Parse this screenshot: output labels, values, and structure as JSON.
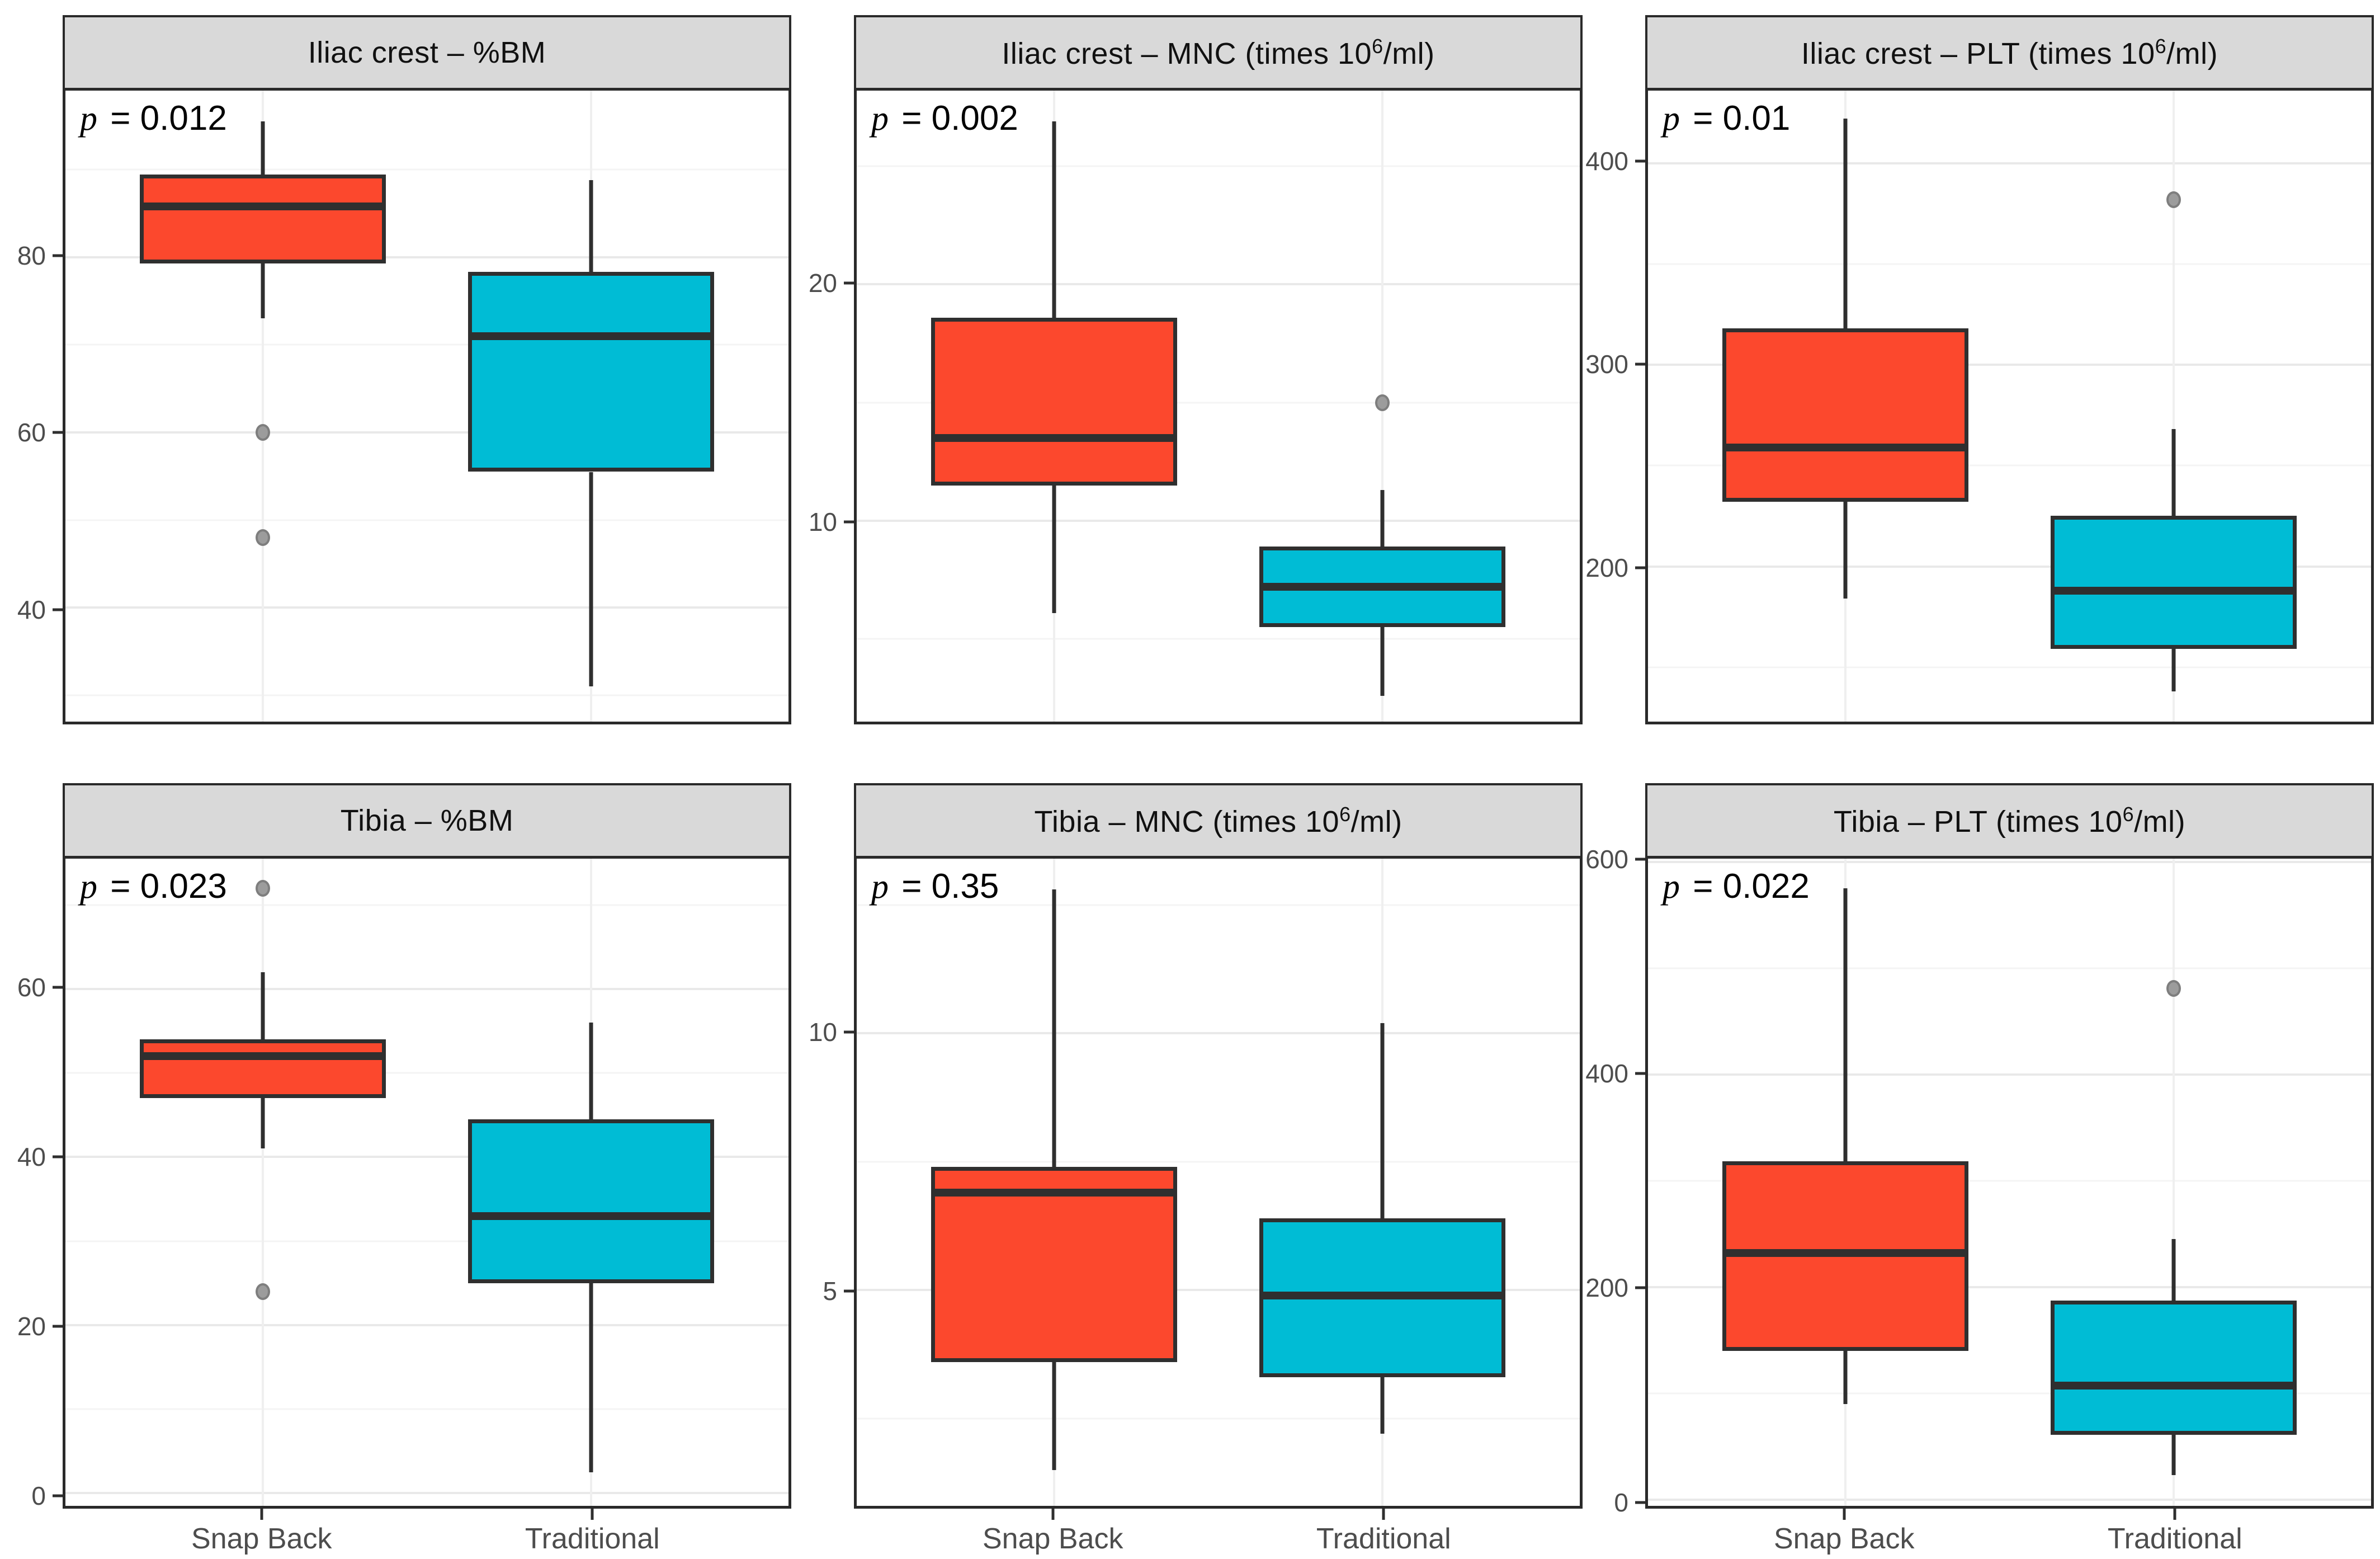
{
  "page": {
    "background": "#FFFFFF"
  },
  "chart_data": {
    "type": "boxplot",
    "layout": {
      "rows": 2,
      "cols": 3,
      "grid": true,
      "legend": "none",
      "strip_position": "top"
    },
    "x_categories": [
      "Snap Back",
      "Traditional"
    ],
    "colors": {
      "snap_back_fill": "#FC482D",
      "traditional_fill": "#00BCD5",
      "box_border": "#2F2F2F",
      "outlier_fill": "#9C9C9C",
      "strip_background": "#D9D9D9",
      "panel_border": "#2A2A2A",
      "grid_major": "#E9E9E9",
      "grid_minor": "#F4F4F4",
      "axis_text": "#4D4D4D"
    },
    "panels": [
      {
        "id": "iliac-crest-bm",
        "title": "Iliac crest – %BM",
        "p_label": "p = 0.012",
        "ylim": [
          27,
          99
        ],
        "ticks": [
          40,
          60,
          80
        ],
        "minor_ticks": [
          30,
          50,
          70,
          90
        ],
        "groups": [
          {
            "name": "Snap Back",
            "color_key": "snap_back_fill",
            "whisker_low": 73,
            "q1": 79.3,
            "median": 85.8,
            "q3": 89.4,
            "whisker_high": 95.5,
            "outliers": [
              60,
              48
            ]
          },
          {
            "name": "Traditional",
            "color_key": "traditional_fill",
            "whisker_low": 31,
            "q1": 55.5,
            "median": 71,
            "q3": 78.3,
            "whisker_high": 88.8,
            "outliers": []
          }
        ]
      },
      {
        "id": "iliac-crest-mnc",
        "title": "Iliac crest – MNC (times 10^6/ml)",
        "p_label": "p = 0.002",
        "ylim": [
          1.5,
          28.2
        ],
        "ticks": [
          10,
          20
        ],
        "minor_ticks": [
          5,
          15,
          25
        ],
        "groups": [
          {
            "name": "Snap Back",
            "color_key": "snap_back_fill",
            "whisker_low": 6.1,
            "q1": 11.5,
            "median": 13.5,
            "q3": 18.6,
            "whisker_high": 26.9,
            "outliers": []
          },
          {
            "name": "Traditional",
            "color_key": "traditional_fill",
            "whisker_low": 2.6,
            "q1": 5.5,
            "median": 7.2,
            "q3": 8.9,
            "whisker_high": 11.3,
            "outliers": [
              15
            ]
          }
        ]
      },
      {
        "id": "iliac-crest-plt",
        "title": "Iliac crest – PLT (times 10^6/ml)",
        "p_label": "p = 0.01",
        "ylim": [
          123,
          436
        ],
        "ticks": [
          200,
          300,
          400
        ],
        "minor_ticks": [
          150,
          250,
          350
        ],
        "groups": [
          {
            "name": "Snap Back",
            "color_key": "snap_back_fill",
            "whisker_low": 184,
            "q1": 232,
            "median": 259,
            "q3": 318,
            "whisker_high": 422,
            "outliers": []
          },
          {
            "name": "Traditional",
            "color_key": "traditional_fill",
            "whisker_low": 138,
            "q1": 159,
            "median": 188,
            "q3": 225,
            "whisker_high": 268,
            "outliers": [
              382
            ]
          }
        ]
      },
      {
        "id": "tibia-bm",
        "title": "Tibia – %BM",
        "p_label": "p = 0.023",
        "ylim": [
          -1.5,
          75.5
        ],
        "ticks": [
          0,
          20,
          40,
          60
        ],
        "minor_ticks": [
          10,
          30,
          50,
          70
        ],
        "groups": [
          {
            "name": "Snap Back",
            "color_key": "snap_back_fill",
            "whisker_low": 41,
            "q1": 47,
            "median": 52,
            "q3": 54,
            "whisker_high": 62,
            "outliers": [
              72,
              24
            ]
          },
          {
            "name": "Traditional",
            "color_key": "traditional_fill",
            "whisker_low": 2.5,
            "q1": 25,
            "median": 33,
            "q3": 44.5,
            "whisker_high": 56,
            "outliers": []
          }
        ]
      },
      {
        "id": "tibia-mnc",
        "title": "Tibia – MNC (times 10^6/ml)",
        "p_label": "p = 0.35",
        "ylim": [
          0.8,
          13.4
        ],
        "ticks": [
          5,
          10
        ],
        "minor_ticks": [
          2.5,
          7.5,
          12.5
        ],
        "groups": [
          {
            "name": "Snap Back",
            "color_key": "snap_back_fill",
            "whisker_low": 1.5,
            "q1": 3.6,
            "median": 6.9,
            "q3": 7.4,
            "whisker_high": 12.8,
            "outliers": []
          },
          {
            "name": "Traditional",
            "color_key": "traditional_fill",
            "whisker_low": 2.2,
            "q1": 3.3,
            "median": 4.9,
            "q3": 6.4,
            "whisker_high": 10.2,
            "outliers": []
          }
        ]
      },
      {
        "id": "tibia-plt",
        "title": "Tibia – PLT (times 10^6/ml)",
        "p_label": "p = 0.022",
        "ylim": [
          -6,
          603
        ],
        "ticks": [
          0,
          200,
          400,
          600
        ],
        "minor_ticks": [
          100,
          300,
          500
        ],
        "groups": [
          {
            "name": "Snap Back",
            "color_key": "snap_back_fill",
            "whisker_low": 90,
            "q1": 140,
            "median": 232,
            "q3": 318,
            "whisker_high": 575,
            "outliers": []
          },
          {
            "name": "Traditional",
            "color_key": "traditional_fill",
            "whisker_low": 23,
            "q1": 61,
            "median": 107,
            "q3": 187,
            "whisker_high": 245,
            "outliers": [
              481
            ]
          }
        ]
      }
    ],
    "group_centers_pct": [
      27.3,
      72.7
    ],
    "box_width_pct": 34
  }
}
